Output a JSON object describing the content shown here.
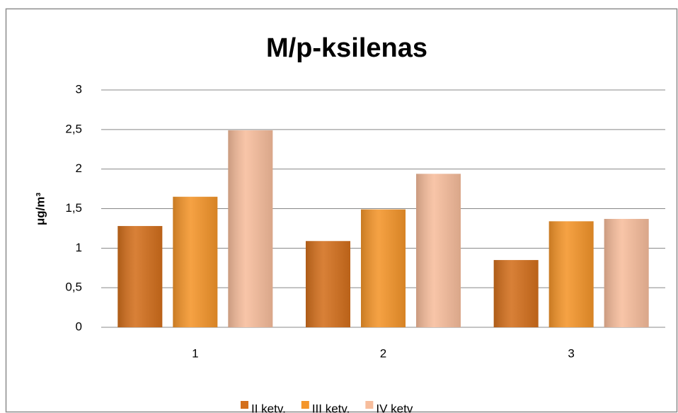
{
  "chart_data": {
    "type": "bar",
    "title": "M/p-ksilenas",
    "y_label": "μg/m³",
    "categories": [
      "1",
      "2",
      "3"
    ],
    "series": [
      {
        "name": "II ketv.",
        "color": "#d36f1c",
        "values": [
          1.28,
          1.09,
          0.85
        ]
      },
      {
        "name": "III ketv.",
        "color": "#f4952a",
        "values": [
          1.65,
          1.49,
          1.34
        ]
      },
      {
        "name": "IV ketv",
        "color": "#f7bd9c",
        "values": [
          2.49,
          1.94,
          1.37
        ]
      }
    ],
    "ylim": [
      0,
      3
    ],
    "yticks": [
      0,
      {
        "value": 0.5,
        "label": "0,5"
      },
      1,
      {
        "value": 1.5,
        "label": "1,5"
      },
      2,
      {
        "value": 2.5,
        "label": "2,5"
      },
      3
    ],
    "grid": true,
    "legend": "bottom"
  }
}
